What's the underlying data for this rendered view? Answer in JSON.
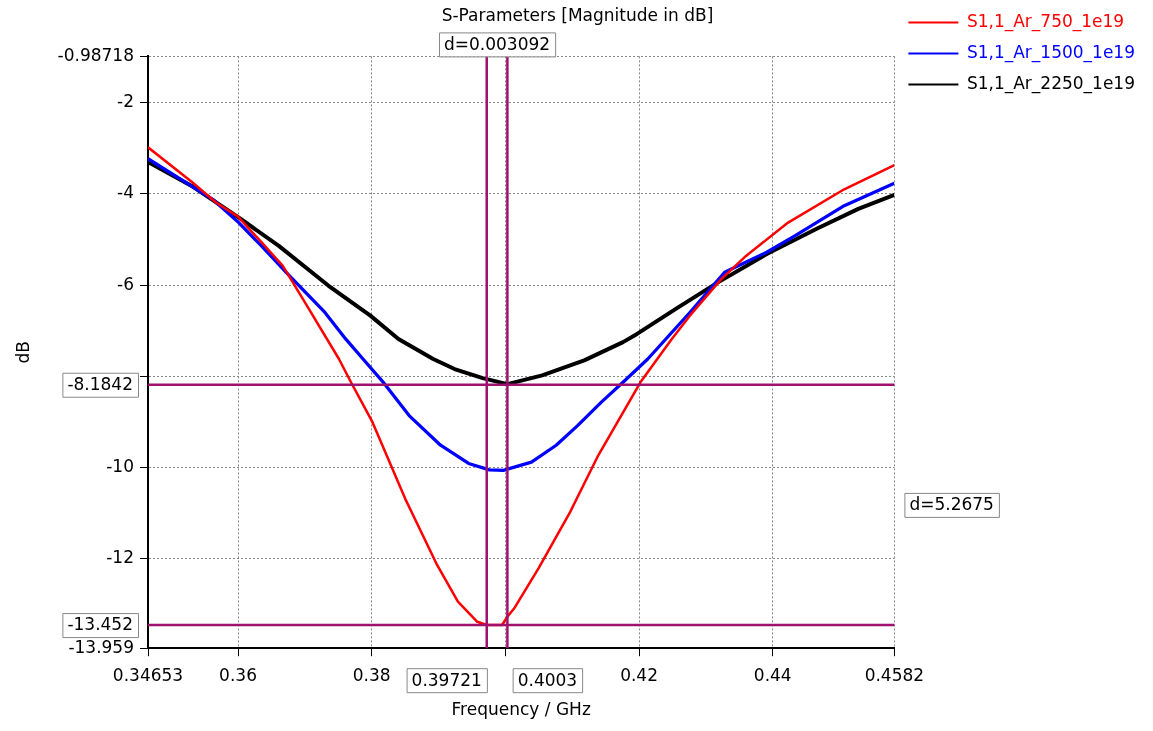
{
  "chart_data": {
    "type": "line",
    "title": "S-Parameters [Magnitude in dB]",
    "xlabel": "Frequency / GHz",
    "ylabel": "dB",
    "xlim": [
      0.34653,
      0.4582
    ],
    "ylim": [
      -13.959,
      -0.98718
    ],
    "xticks": [
      0.34653,
      0.36,
      0.38,
      {
        "value": 0.4,
        "label": null
      },
      0.42,
      0.44,
      0.4582
    ],
    "yticks": [
      -0.98718,
      -2,
      -4,
      -6,
      {
        "value": -8,
        "label": null
      },
      -10,
      -12,
      -13.959
    ],
    "grid": true,
    "legend": "top right",
    "line_style": "solid",
    "marker": "none",
    "series": [
      {
        "name": "S1,1_Ar_750_1e19",
        "color": "#ff0000",
        "x": [
          0.34653,
          0.3531,
          0.3567,
          0.36,
          0.3635,
          0.3667,
          0.3703,
          0.3751,
          0.3769,
          0.3801,
          0.385,
          0.3898,
          0.3929,
          0.3958,
          0.3972,
          0.3995,
          0.4003,
          0.4013,
          0.405,
          0.4097,
          0.4139,
          0.4202,
          0.4249,
          0.4276,
          0.4323,
          0.436,
          0.4423,
          0.4507,
          0.4582
        ],
        "values": [
          -2.98,
          -3.74,
          -4.19,
          -4.5,
          -5.06,
          -5.58,
          -6.45,
          -7.62,
          -8.13,
          -9.0,
          -10.68,
          -12.14,
          -12.94,
          -13.38,
          -13.45,
          -13.45,
          -13.27,
          -13.09,
          -12.2,
          -10.97,
          -9.73,
          -8.13,
          -7.18,
          -6.67,
          -5.87,
          -5.36,
          -4.63,
          -3.9,
          -3.37
        ]
      },
      {
        "name": "S1,1_Ar_1500_1e19",
        "color": "#0000ff",
        "x": [
          0.34653,
          0.3562,
          0.3601,
          0.3635,
          0.3672,
          0.373,
          0.3761,
          0.3787,
          0.3819,
          0.3856,
          0.3903,
          0.3945,
          0.3976,
          0.3997,
          0.4039,
          0.4076,
          0.4108,
          0.4144,
          0.4176,
          0.4213,
          0.4276,
          0.4328,
          0.4391,
          0.4433,
          0.4507,
          0.4582
        ],
        "values": [
          -3.23,
          -4.12,
          -4.63,
          -5.14,
          -5.72,
          -6.6,
          -7.18,
          -7.62,
          -8.16,
          -8.86,
          -9.51,
          -9.91,
          -10.05,
          -10.06,
          -9.88,
          -9.51,
          -9.08,
          -8.56,
          -8.13,
          -7.62,
          -6.6,
          -5.72,
          -5.28,
          -4.92,
          -4.26,
          -3.77
        ]
      },
      {
        "name": "S1,1_Ar_2250_1e19",
        "color": "#000000",
        "x": [
          0.34653,
          0.353,
          0.3604,
          0.3661,
          0.3735,
          0.3798,
          0.384,
          0.3892,
          0.3924,
          0.3966,
          0.4003,
          0.4055,
          0.4118,
          0.4176,
          0.4197,
          0.4255,
          0.4318,
          0.4391,
          0.4465,
          0.4528,
          0.4582
        ],
        "values": [
          -3.3,
          -3.82,
          -4.55,
          -5.14,
          -6.01,
          -6.67,
          -7.18,
          -7.62,
          -7.84,
          -8.04,
          -8.17,
          -7.98,
          -7.65,
          -7.25,
          -7.07,
          -6.52,
          -5.94,
          -5.32,
          -4.77,
          -4.33,
          -4.02
        ]
      }
    ],
    "ref_lines": [
      {
        "axis": "x",
        "value": 0.39721,
        "label": "0.39721",
        "color": "#a0106e"
      },
      {
        "axis": "x",
        "value": 0.4003,
        "label": "0.4003",
        "color": "#a0106e"
      },
      {
        "axis": "y",
        "value": -8.1842,
        "label": "-8.1842",
        "color": "#a0106e"
      },
      {
        "axis": "y",
        "value": -13.452,
        "label": "-13.452",
        "color": "#a0106e"
      }
    ],
    "annotations": [
      "d=0.003092",
      "d=5.2675"
    ]
  }
}
